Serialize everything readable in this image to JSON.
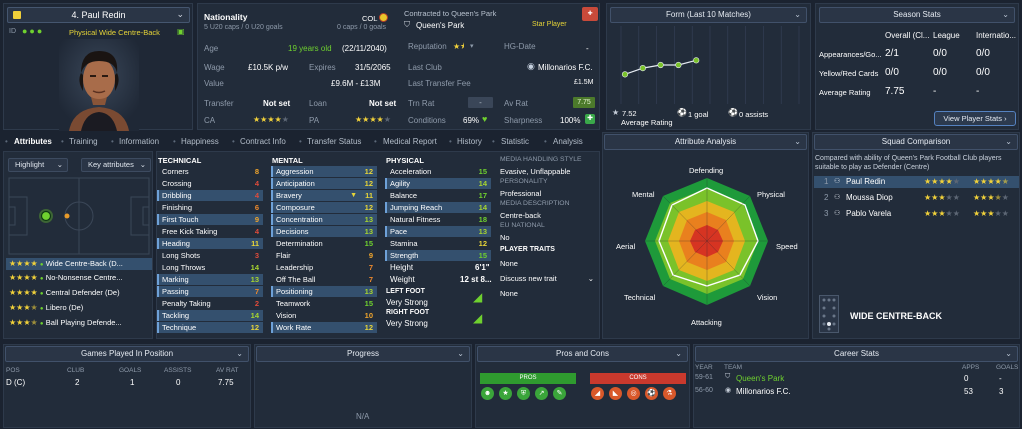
{
  "player": {
    "name": "4. Paul Redin",
    "role": "Physical Wide Centre-Back",
    "nationality_label": "Nationality",
    "nationality": "COL",
    "caps": "5 U20 caps / 0 U20 goals",
    "caps_right": "0 caps / 0 goals",
    "contracted_label": "Contracted to Queen's Park",
    "club": "Queen's Park",
    "badge": "Star Player",
    "age_label": "Age",
    "age": "19 years old",
    "dob": "(22/11/2040)",
    "wage_label": "Wage",
    "wage": "£10.5K p/w",
    "expires_label": "Expires",
    "expires": "31/5/2065",
    "value_label": "Value",
    "value": "£9.6M - £13M",
    "transfer_label": "Transfer",
    "transfer": "Not set",
    "loan_label": "Loan",
    "loan": "Not set",
    "ca_label": "CA",
    "pa_label": "PA",
    "reputation_label": "Reputation",
    "hgdate_label": "HG-Date",
    "hgdate": "-",
    "lastclub_label": "Last Club",
    "lastclub": "Millonarios F.C.",
    "lasttransfer_label": "Last Transfer Fee",
    "lasttransfer": "£1.5M",
    "trnrat_label": "Trn Rat",
    "trnrat": "-",
    "avrat_label": "Av Rat",
    "avrat": "7.75",
    "conditions_label": "Conditions",
    "conditions": "69%",
    "sharpness_label": "Sharpness",
    "sharpness": "100%"
  },
  "form": {
    "title": "Form (Last 10 Matches)",
    "avg_value": "7.52",
    "avg_label": "Average Rating",
    "goals": "1 goal",
    "assists": "0 assists",
    "points": [
      6.9,
      7.3,
      7.5,
      7.5,
      7.8
    ],
    "ylim": [
      5,
      10
    ]
  },
  "season": {
    "title": "Season Stats",
    "cols": [
      "Overall (Cl...",
      "League",
      "Internatio..."
    ],
    "rows": [
      {
        "label": "Appearances/Go...",
        "v": [
          "2/1",
          "0/0",
          "0/0"
        ]
      },
      {
        "label": "Yellow/Red Cards",
        "v": [
          "0/0",
          "0/0",
          "0/0"
        ]
      },
      {
        "label": "Average Rating",
        "v": [
          "7.75",
          "-",
          "-"
        ]
      }
    ],
    "button": "View Player Stats"
  },
  "tabs": [
    "Attributes",
    "Training",
    "Information",
    "Happiness",
    "Contract Info",
    "Transfer Status",
    "Medical Report",
    "History",
    "Statistic",
    "Analysis"
  ],
  "pitch": {
    "highlight": "Highlight",
    "key_attributes": "Key attributes",
    "roles": [
      {
        "name": "Wide Centre-Back (D...",
        "stars": 4
      },
      {
        "name": "No-Nonsense Centre...",
        "stars": 4
      },
      {
        "name": "Central Defender (De)",
        "stars": 4
      },
      {
        "name": "Libero (De)",
        "stars": 3.5
      },
      {
        "name": "Ball Playing Defende...",
        "stars": 3.5
      }
    ]
  },
  "technical": {
    "title": "TECHNICAL",
    "items": [
      {
        "n": "Corners",
        "v": "8"
      },
      {
        "n": "Crossing",
        "v": "4"
      },
      {
        "n": "Dribbling",
        "v": "4"
      },
      {
        "n": "Finishing",
        "v": "6"
      },
      {
        "n": "First Touch",
        "v": "9"
      },
      {
        "n": "Free Kick Taking",
        "v": "4"
      },
      {
        "n": "Heading",
        "v": "11"
      },
      {
        "n": "Long Shots",
        "v": "3"
      },
      {
        "n": "Long Throws",
        "v": "14"
      },
      {
        "n": "Marking",
        "v": "13"
      },
      {
        "n": "Passing",
        "v": "7"
      },
      {
        "n": "Penalty Taking",
        "v": "2"
      },
      {
        "n": "Tackling",
        "v": "14"
      },
      {
        "n": "Technique",
        "v": "12"
      }
    ]
  },
  "mental": {
    "title": "MENTAL",
    "items": [
      {
        "n": "Aggression",
        "v": "12"
      },
      {
        "n": "Anticipation",
        "v": "12"
      },
      {
        "n": "Bravery",
        "v": "11"
      },
      {
        "n": "Composure",
        "v": "12"
      },
      {
        "n": "Concentration",
        "v": "13"
      },
      {
        "n": "Decisions",
        "v": "13"
      },
      {
        "n": "Determination",
        "v": "15"
      },
      {
        "n": "Flair",
        "v": "9"
      },
      {
        "n": "Leadership",
        "v": "7"
      },
      {
        "n": "Off The Ball",
        "v": "7"
      },
      {
        "n": "Positioning",
        "v": "13"
      },
      {
        "n": "Teamwork",
        "v": "15"
      },
      {
        "n": "Vision",
        "v": "10"
      },
      {
        "n": "Work Rate",
        "v": "12"
      }
    ]
  },
  "physical": {
    "title": "PHYSICAL",
    "items": [
      {
        "n": "Acceleration",
        "v": "15"
      },
      {
        "n": "Agility",
        "v": "14"
      },
      {
        "n": "Balance",
        "v": "17"
      },
      {
        "n": "Jumping Reach",
        "v": "14"
      },
      {
        "n": "Natural Fitness",
        "v": "18"
      },
      {
        "n": "Pace",
        "v": "13"
      },
      {
        "n": "Stamina",
        "v": "12"
      },
      {
        "n": "Strength",
        "v": "15"
      }
    ],
    "height_label": "Height",
    "height": "6'1\"",
    "weight_label": "Weight",
    "weight": "12 st 8...",
    "left_foot_label": "LEFT FOOT",
    "left_foot": "Very Strong",
    "right_foot_label": "RIGHT FOOT",
    "right_foot": "Very Strong"
  },
  "info": {
    "media_style_label": "MEDIA HANDLING STYLE",
    "media_style": "Evasive, Unflappable",
    "personality_label": "PERSONALITY",
    "personality": "Professional",
    "media_desc_label": "MEDIA DESCRIPTION",
    "media_desc": "Centre-back",
    "eu_label": "EU NATIONAL",
    "eu": "No",
    "traits_label": "PLAYER TRAITS",
    "traits": "None",
    "discuss": "Discuss new trait",
    "none2": "None"
  },
  "analysis": {
    "title": "Attribute Analysis",
    "axes": [
      "Defending",
      "Physical",
      "Speed",
      "Vision",
      "Attacking",
      "Technical",
      "Aerial",
      "Mental"
    ]
  },
  "squad": {
    "title": "Squad Comparison",
    "desc": "Compared with ability of Queen's Park Football Club players suitable to play as Defender (Centre)",
    "rows": [
      {
        "rank": "1",
        "name": "Paul Redin",
        "ca": 4,
        "pa": 4.5
      },
      {
        "rank": "2",
        "name": "Moussa Diop",
        "ca": 3,
        "pa": 3.5
      },
      {
        "rank": "3",
        "name": "Pablo Varela",
        "ca": 3,
        "pa": 3
      }
    ],
    "position": "WIDE CENTRE-BACK"
  },
  "games": {
    "title": "Games Played In Position",
    "cols": [
      "POS",
      "CLUB",
      "GOALS",
      "ASSISTS",
      "AV RAT"
    ],
    "rows": [
      {
        "pos": "D (C)",
        "club": "2",
        "goals": "1",
        "assists": "0",
        "avrat": "7.75"
      }
    ]
  },
  "progress": {
    "title": "Progress",
    "na": "N/A"
  },
  "pros": {
    "title": "Pros and Cons",
    "pros": "PROS",
    "cons": "CONS"
  },
  "career": {
    "title": "Career Stats",
    "cols": [
      "YEAR",
      "TEAM",
      "APPS",
      "GOALS"
    ],
    "rows": [
      {
        "year": "59-61",
        "team": "Queen's Park",
        "apps": "0",
        "goals": "-"
      },
      {
        "year": "56-60",
        "team": "Millonarios F.C.",
        "apps": "53",
        "goals": "3"
      }
    ]
  },
  "colors": {
    "accent": "#6fd12f",
    "highlight": "#34506e",
    "star": "#f2d23a"
  }
}
